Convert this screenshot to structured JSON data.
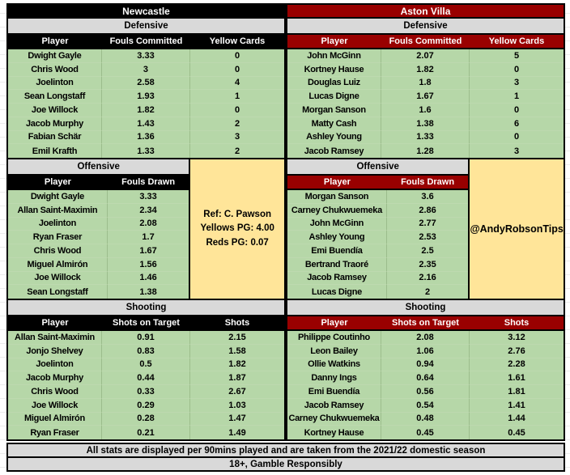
{
  "colors": {
    "newcastle_theme": "#000000",
    "villa_theme": "#990000",
    "row_green": "#b6d7a8",
    "subtitle_gray": "#d9d9d9",
    "note_yellow": "#ffe599"
  },
  "chart_data": [
    {
      "type": "table",
      "title": "Newcastle",
      "sections": [
        {
          "title": "Defensive",
          "columns": [
            "Player",
            "Fouls Committed",
            "Yellow Cards"
          ],
          "rows": [
            [
              "Dwight Gayle",
              "3.33",
              "0"
            ],
            [
              "Chris Wood",
              "3",
              "0"
            ],
            [
              "Joelinton",
              "2.58",
              "4"
            ],
            [
              "Sean Longstaff",
              "1.93",
              "1"
            ],
            [
              "Joe Willock",
              "1.82",
              "0"
            ],
            [
              "Jacob Murphy",
              "1.43",
              "2"
            ],
            [
              "Fabian Schär",
              "1.36",
              "3"
            ],
            [
              "Emil Krafth",
              "1.33",
              "2"
            ]
          ]
        },
        {
          "title": "Offensive",
          "columns": [
            "Player",
            "Fouls Drawn"
          ],
          "rows": [
            [
              "Dwight Gayle",
              "3.33"
            ],
            [
              "Allan Saint-Maximin",
              "2.34"
            ],
            [
              "Joelinton",
              "2.08"
            ],
            [
              "Ryan Fraser",
              "1.7"
            ],
            [
              "Chris Wood",
              "1.67"
            ],
            [
              "Miguel Almirón",
              "1.56"
            ],
            [
              "Joe Willock",
              "1.46"
            ],
            [
              "Sean Longstaff",
              "1.38"
            ]
          ]
        },
        {
          "title": "Shooting",
          "columns": [
            "Player",
            "Shots on Target",
            "Shots"
          ],
          "rows": [
            [
              "Allan Saint-Maximin",
              "0.91",
              "2.15"
            ],
            [
              "Jonjo Shelvey",
              "0.83",
              "1.58"
            ],
            [
              "Joelinton",
              "0.5",
              "1.82"
            ],
            [
              "Jacob Murphy",
              "0.44",
              "1.87"
            ],
            [
              "Chris Wood",
              "0.33",
              "2.67"
            ],
            [
              "Joe Willock",
              "0.29",
              "1.03"
            ],
            [
              "Miguel Almirón",
              "0.28",
              "1.47"
            ],
            [
              "Ryan Fraser",
              "0.21",
              "1.49"
            ]
          ]
        }
      ],
      "side_box": [
        "Ref: C. Pawson",
        "Yellows PG: 4.00",
        "Reds PG: 0.07"
      ]
    },
    {
      "type": "table",
      "title": "Aston Villa",
      "sections": [
        {
          "title": "Defensive",
          "columns": [
            "Player",
            "Fouls Committed",
            "Yellow Cards"
          ],
          "rows": [
            [
              "John McGinn",
              "2.07",
              "5"
            ],
            [
              "Kortney Hause",
              "1.82",
              "0"
            ],
            [
              "Douglas Luiz",
              "1.8",
              "3"
            ],
            [
              "Lucas Digne",
              "1.67",
              "1"
            ],
            [
              "Morgan Sanson",
              "1.6",
              "0"
            ],
            [
              "Matty Cash",
              "1.38",
              "6"
            ],
            [
              "Ashley Young",
              "1.33",
              "0"
            ],
            [
              "Jacob Ramsey",
              "1.28",
              "3"
            ]
          ]
        },
        {
          "title": "Offensive",
          "columns": [
            "Player",
            "Fouls Drawn"
          ],
          "rows": [
            [
              "Morgan Sanson",
              "3.6"
            ],
            [
              "Carney Chukwuemeka",
              "2.86"
            ],
            [
              "John McGinn",
              "2.77"
            ],
            [
              "Ashley Young",
              "2.53"
            ],
            [
              "Emi Buendía",
              "2.5"
            ],
            [
              "Bertrand Traoré",
              "2.35"
            ],
            [
              "Jacob Ramsey",
              "2.16"
            ],
            [
              "Lucas Digne",
              "2"
            ]
          ]
        },
        {
          "title": "Shooting",
          "columns": [
            "Player",
            "Shots on Target",
            "Shots"
          ],
          "rows": [
            [
              "Philippe Coutinho",
              "2.08",
              "3.12"
            ],
            [
              "Leon Bailey",
              "1.06",
              "2.76"
            ],
            [
              "Ollie Watkins",
              "0.94",
              "2.28"
            ],
            [
              "Danny Ings",
              "0.64",
              "1.61"
            ],
            [
              "Emi Buendía",
              "0.56",
              "1.81"
            ],
            [
              "Jacob Ramsey",
              "0.54",
              "1.41"
            ],
            [
              "Carney Chukwuemeka",
              "0.48",
              "1.44"
            ],
            [
              "Kortney Hause",
              "0.45",
              "0.45"
            ]
          ]
        }
      ],
      "side_box": [
        "@AndyRobsonTips"
      ]
    }
  ],
  "footer": {
    "stats_note": "All stats are displayed per 90mins played and are taken from the 2021/22 domestic season",
    "responsible_note": "18+, Gamble Responsibly"
  }
}
